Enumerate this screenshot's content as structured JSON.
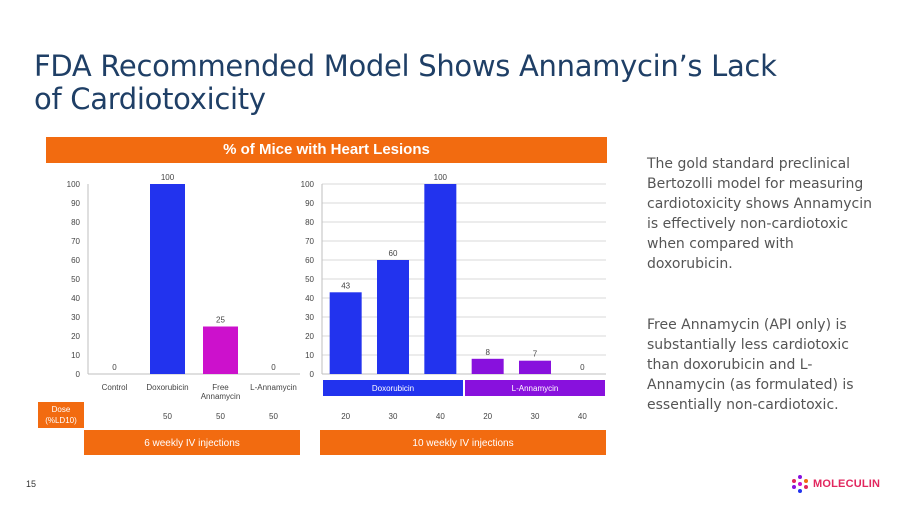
{
  "slide": {
    "title": "FDA Recommended Model Shows Annamycin’s Lack of Cardiotoxicity",
    "banner": "% of Mice with Heart Lesions",
    "paragraph1": "The gold standard preclinical Bertozolli model for measuring cardiotoxicity shows Annamycin is effectively non-cardiotoxic when compared with doxorubicin.",
    "paragraph2": "Free Annamycin (API only) is substantially less cardiotoxic than doxorubicin and L-Annamycin (as formulated) is essentially non-cardiotoxic.",
    "page_number": "15",
    "logo_text": "MOLECULIN",
    "colors": {
      "orange": "#f26b10",
      "blue": "#2233ee",
      "magenta": "#cc11cc",
      "purple": "#8811dd"
    }
  },
  "chart_data": [
    {
      "type": "bar",
      "categories": [
        "Control",
        "Doxorubicin",
        "Free Annamycin",
        "L-Annamycin"
      ],
      "values": [
        0,
        100,
        25,
        0
      ],
      "bar_colors": [
        "#2233ee",
        "#2233ee",
        "#cc11cc",
        "#8811dd"
      ],
      "ylim": [
        0,
        100
      ],
      "yticks": [
        0,
        10,
        20,
        30,
        40,
        50,
        60,
        70,
        80,
        90,
        100
      ],
      "dose_label": "Dose (%LD10)",
      "doses": [
        "",
        "50",
        "50",
        "50"
      ],
      "footer": "6 weekly IV injections"
    },
    {
      "type": "bar",
      "groups": [
        {
          "name": "Doxorubicin",
          "color": "#2233ee",
          "doses": [
            "20",
            "30",
            "40"
          ],
          "values": [
            43,
            60,
            100
          ]
        },
        {
          "name": "L-Annamycin",
          "color": "#8811dd",
          "doses": [
            "20",
            "30",
            "40"
          ],
          "values": [
            8,
            7,
            0
          ]
        }
      ],
      "ylim": [
        0,
        100
      ],
      "yticks": [
        0,
        10,
        20,
        30,
        40,
        50,
        60,
        70,
        80,
        90,
        100
      ],
      "footer": "10 weekly IV injections"
    }
  ]
}
